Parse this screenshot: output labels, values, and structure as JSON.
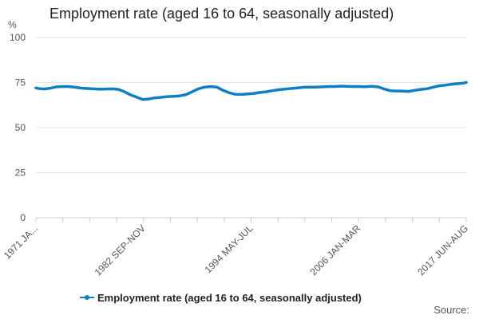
{
  "chart_data": {
    "type": "line",
    "title": "Employment rate (aged 16 to 64, seasonally adjusted)",
    "ylabel": "%",
    "xlabel": "",
    "ylim": [
      0,
      100
    ],
    "yticks": [
      "0",
      "25",
      "50",
      "75",
      "100"
    ],
    "xtick_labels": [
      "1971 JA...",
      "1982 SEP-NOV",
      "1994 MAY-JUL",
      "2006 JAN-MAR",
      "2017 JUN-AUG"
    ],
    "grid": true,
    "legend_position": "bottom",
    "series": [
      {
        "name": "Employment rate (aged 16 to 64, seasonally adjusted)",
        "color": "#0f7fbf",
        "x": [
          1971.1,
          1971.5,
          1972.0,
          1972.6,
          1973.3,
          1974.0,
          1974.6,
          1975.3,
          1976.0,
          1976.6,
          1977.3,
          1978.0,
          1978.6,
          1979.3,
          1980.0,
          1980.6,
          1981.3,
          1982.0,
          1982.6,
          1983.2,
          1983.9,
          1984.6,
          1985.3,
          1986.0,
          1986.6,
          1987.3,
          1988.0,
          1988.6,
          1989.3,
          1990.0,
          1990.6,
          1991.3,
          1992.0,
          1992.6,
          1993.3,
          1994.0,
          1994.6,
          1995.3,
          1996.0,
          1996.6,
          1997.3,
          1998.0,
          1998.6,
          1999.3,
          2000.0,
          2000.6,
          2001.3,
          2002.0,
          2002.6,
          2003.3,
          2004.0,
          2004.6,
          2005.3,
          2006.0,
          2006.6,
          2007.3,
          2008.0,
          2008.6,
          2009.3,
          2010.0,
          2010.6,
          2011.3,
          2012.0,
          2012.6,
          2013.3,
          2014.0,
          2014.6,
          2015.3,
          2016.0,
          2016.6,
          2017.2,
          2017.5
        ],
        "values": [
          72.0,
          71.6,
          71.4,
          71.8,
          72.6,
          72.8,
          72.8,
          72.4,
          71.9,
          71.7,
          71.5,
          71.3,
          71.4,
          71.5,
          71.2,
          70.0,
          68.2,
          66.8,
          65.6,
          65.8,
          66.5,
          66.8,
          67.2,
          67.4,
          67.6,
          68.3,
          70.0,
          71.5,
          72.5,
          72.8,
          72.5,
          70.6,
          69.2,
          68.5,
          68.4,
          68.7,
          69.0,
          69.5,
          69.9,
          70.5,
          71.0,
          71.4,
          71.7,
          72.0,
          72.4,
          72.5,
          72.5,
          72.6,
          72.8,
          72.8,
          73.0,
          72.9,
          72.8,
          72.8,
          72.7,
          72.9,
          72.6,
          71.5,
          70.5,
          70.3,
          70.2,
          70.1,
          70.7,
          71.2,
          71.6,
          72.5,
          73.2,
          73.6,
          74.1,
          74.4,
          74.7,
          75.1
        ]
      }
    ]
  },
  "source_label": "Source:"
}
